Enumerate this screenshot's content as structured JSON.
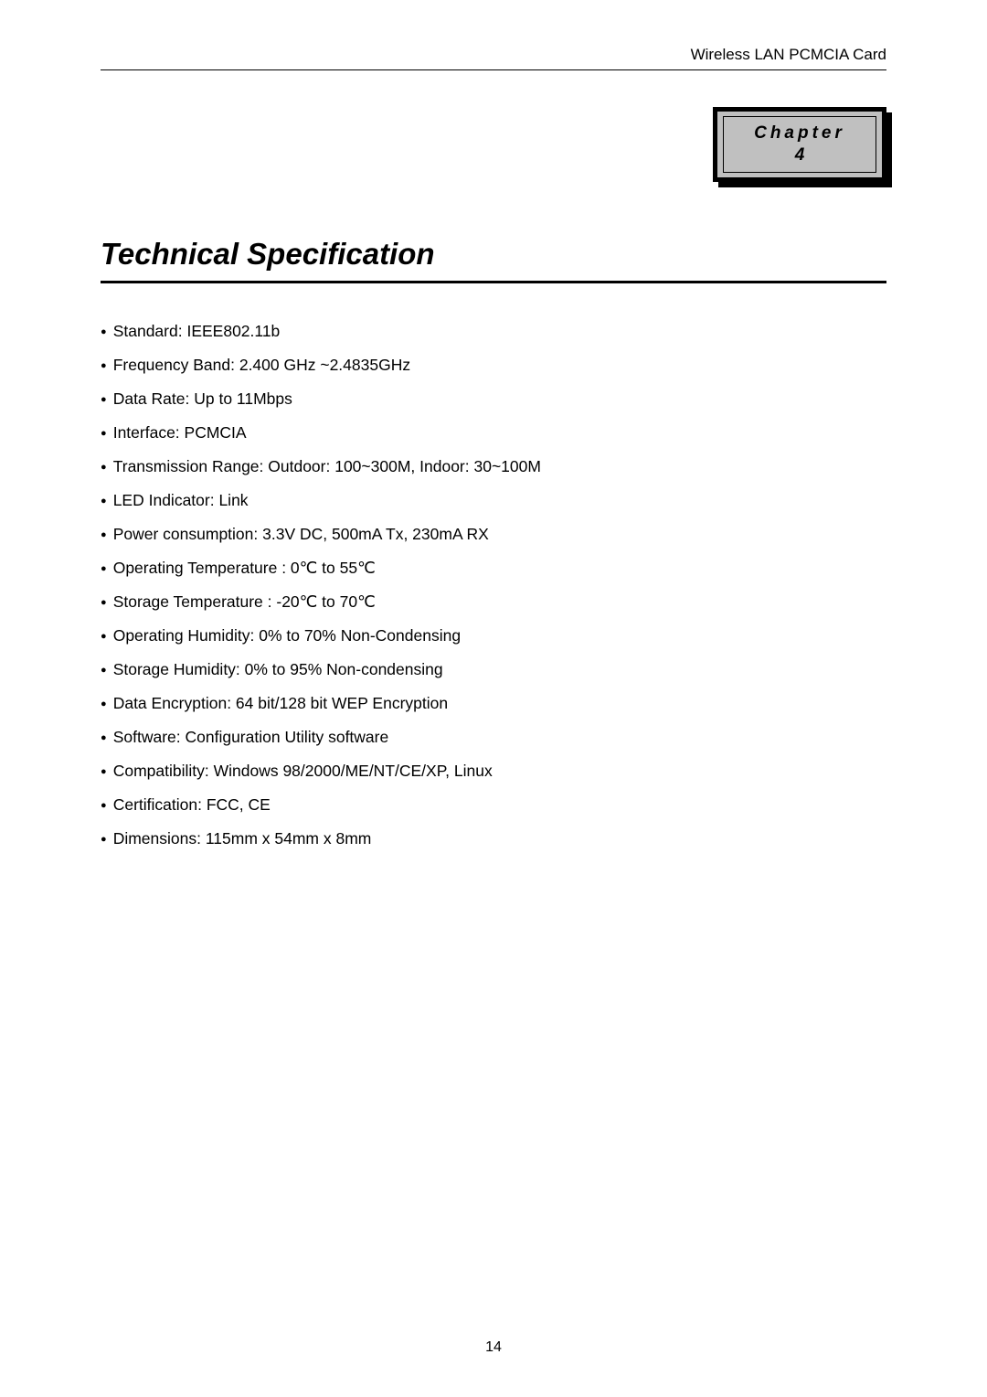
{
  "header": {
    "text": "Wireless LAN PCMCIA Card"
  },
  "chapter": {
    "label": "Chapter",
    "number": "4"
  },
  "title": "Technical Specification",
  "specs": [
    "Standard: IEEE802.11b",
    "Frequency Band: 2.400 GHz ~2.4835GHz",
    "Data Rate: Up to 11Mbps",
    "Interface: PCMCIA",
    "Transmission Range: Outdoor: 100~300M, Indoor: 30~100M",
    "LED Indicator: Link",
    "Power consumption: 3.3V DC, 500mA Tx, 230mA RX",
    "Operating Temperature : 0℃ to 55℃",
    "Storage Temperature : -20℃ to 70℃",
    "Operating Humidity: 0% to 70% Non-Condensing",
    "Storage Humidity: 0% to 95% Non-condensing",
    "Data Encryption: 64 bit/128 bit WEP Encryption",
    "Software: Configuration Utility software",
    "Compatibility: Windows 98/2000/ME/NT/CE/XP, Linux",
    "Certification: FCC, CE",
    "Dimensions: 115mm x 54mm x 8mm"
  ],
  "pageNumber": "14"
}
